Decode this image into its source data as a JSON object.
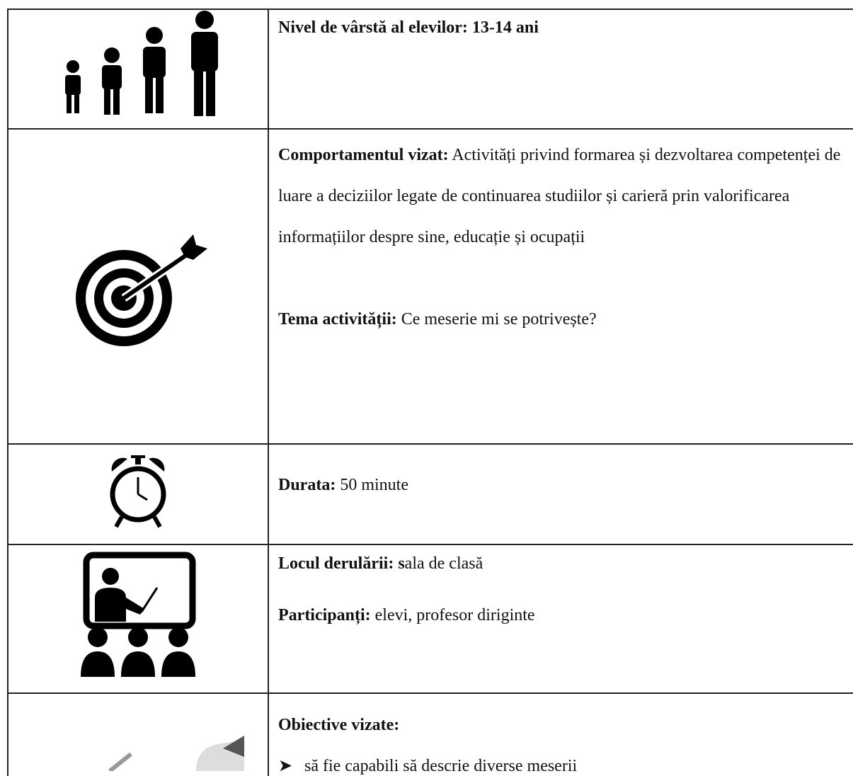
{
  "table": {
    "rows": [
      {
        "paragraphs": [
          {
            "label": "Nivel de vârstă al elevilor: 13-14 ani"
          }
        ]
      },
      {
        "paragraphs": [
          {
            "label": "Comportamentul vizat:",
            "text": "Activități privind formarea și dezvoltarea competenței de luare a deciziilor legate de continuarea studiilor și carieră prin valorificarea informațiilor despre sine, educație și ocupații"
          },
          {
            "label": "Tema activității:",
            "text": "Ce meserie mi se potrivește?"
          }
        ]
      },
      {
        "paragraphs": [
          {
            "label": "Durata:",
            "text": "50 minute"
          }
        ]
      },
      {
        "paragraphs": [
          {
            "label": "Locul derulării: s",
            "text": "ala de clasă"
          },
          {
            "label": "Participanți:",
            "text": "elevi, profesor diriginte"
          }
        ]
      },
      {
        "paragraphs": [
          {
            "label": "Obiective vizate:"
          }
        ],
        "bullets": [
          "să fie capabili să descrie diverse meserii"
        ]
      }
    ]
  }
}
